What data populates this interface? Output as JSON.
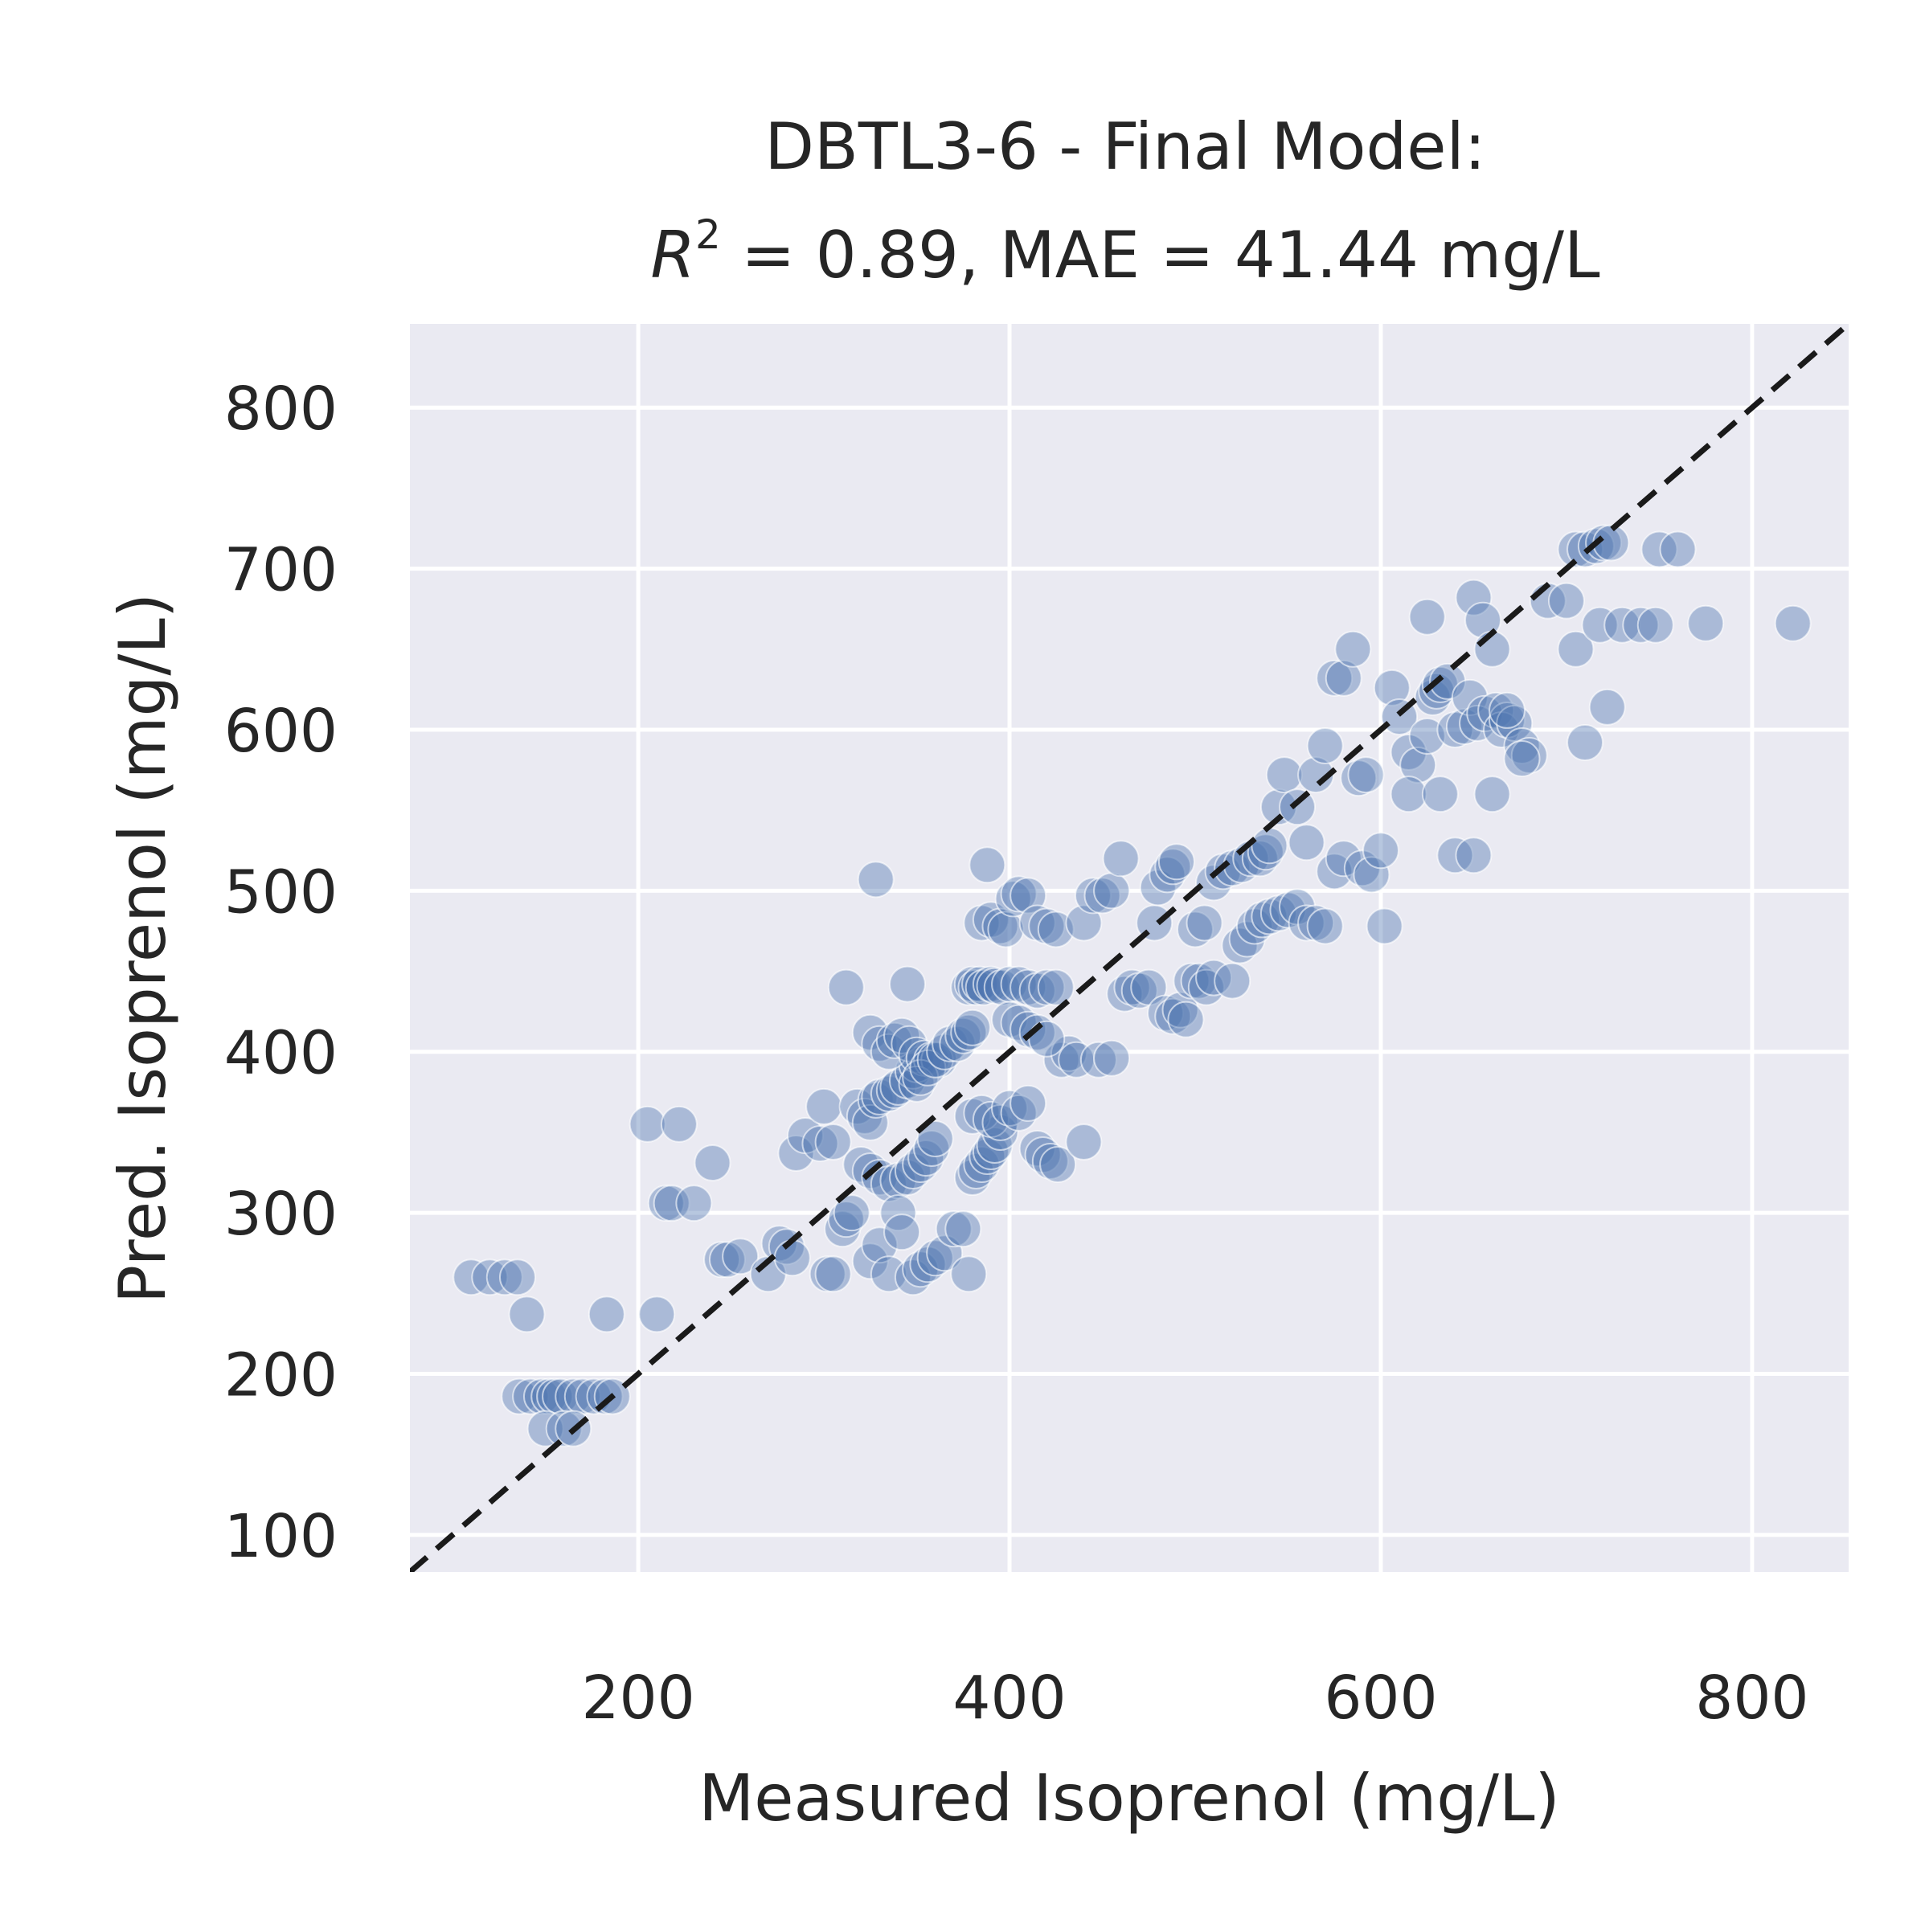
{
  "chart_data": {
    "type": "scatter",
    "title_line1": "DBTL3-6 - Final Model:",
    "title_line2_r2_symbol": "R",
    "title_line2_r2_exponent": "2",
    "title_line2_rest": " = 0.89, MAE = 41.44 mg/L",
    "xlabel": "Measured Isoprenol (mg/L)",
    "ylabel": "Pred. Isoprenol (mg/L)",
    "xlim": [
      77,
      852
    ],
    "ylim": [
      77,
      852
    ],
    "xticks": [
      200,
      400,
      600,
      800
    ],
    "yticks": [
      100,
      200,
      300,
      400,
      500,
      600,
      700,
      800
    ],
    "xtick_labels": [
      "200",
      "400",
      "600",
      "800"
    ],
    "ytick_labels": [
      "100",
      "200",
      "300",
      "400",
      "500",
      "600",
      "700",
      "800"
    ],
    "grid": true,
    "background_color": "#eaeaf2",
    "point_color": "#4c72b0",
    "point_alpha": 0.4,
    "identity_line": {
      "style": "dashed",
      "color": "#1a1a1a"
    },
    "points": [
      [
        110,
        260
      ],
      [
        120,
        260
      ],
      [
        128,
        260
      ],
      [
        135,
        260
      ],
      [
        140,
        237
      ],
      [
        136,
        186
      ],
      [
        142,
        186
      ],
      [
        148,
        186
      ],
      [
        152,
        186
      ],
      [
        155,
        186
      ],
      [
        158,
        186
      ],
      [
        165,
        186
      ],
      [
        170,
        186
      ],
      [
        176,
        186
      ],
      [
        182,
        186
      ],
      [
        186,
        186
      ],
      [
        150,
        166
      ],
      [
        160,
        166
      ],
      [
        165,
        166
      ],
      [
        183,
        237
      ],
      [
        210,
        237
      ],
      [
        205,
        355
      ],
      [
        222,
        355
      ],
      [
        215,
        306
      ],
      [
        218,
        306
      ],
      [
        230,
        306
      ],
      [
        240,
        331
      ],
      [
        245,
        271
      ],
      [
        248,
        271
      ],
      [
        255,
        273
      ],
      [
        270,
        262
      ],
      [
        276,
        281
      ],
      [
        280,
        279
      ],
      [
        283,
        272
      ],
      [
        285,
        337
      ],
      [
        290,
        348
      ],
      [
        298,
        343
      ],
      [
        300,
        366
      ],
      [
        302,
        262
      ],
      [
        305,
        262
      ],
      [
        310,
        290
      ],
      [
        312,
        296
      ],
      [
        315,
        300
      ],
      [
        305,
        344
      ],
      [
        318,
        366
      ],
      [
        322,
        360
      ],
      [
        325,
        356
      ],
      [
        328,
        370
      ],
      [
        330,
        372
      ],
      [
        335,
        374
      ],
      [
        338,
        376
      ],
      [
        340,
        378
      ],
      [
        345,
        382
      ],
      [
        348,
        388
      ],
      [
        350,
        392
      ],
      [
        320,
        330
      ],
      [
        325,
        326
      ],
      [
        330,
        322
      ],
      [
        335,
        318
      ],
      [
        340,
        320
      ],
      [
        345,
        322
      ],
      [
        348,
        326
      ],
      [
        352,
        330
      ],
      [
        355,
        334
      ],
      [
        358,
        340
      ],
      [
        360,
        346
      ],
      [
        312,
        440
      ],
      [
        325,
        412
      ],
      [
        330,
        405
      ],
      [
        335,
        400
      ],
      [
        338,
        407
      ],
      [
        342,
        410
      ],
      [
        346,
        405
      ],
      [
        350,
        398
      ],
      [
        354,
        396
      ],
      [
        358,
        395
      ],
      [
        362,
        395
      ],
      [
        328,
        507
      ],
      [
        345,
        442
      ],
      [
        350,
        380
      ],
      [
        352,
        384
      ],
      [
        356,
        390
      ],
      [
        360,
        395
      ],
      [
        365,
        400
      ],
      [
        368,
        405
      ],
      [
        372,
        405
      ],
      [
        375,
        410
      ],
      [
        378,
        412
      ],
      [
        380,
        415
      ],
      [
        325,
        270
      ],
      [
        330,
        280
      ],
      [
        335,
        262
      ],
      [
        340,
        300
      ],
      [
        342,
        288
      ],
      [
        348,
        260
      ],
      [
        352,
        265
      ],
      [
        356,
        268
      ],
      [
        360,
        272
      ],
      [
        365,
        275
      ],
      [
        370,
        290
      ],
      [
        375,
        290
      ],
      [
        378,
        262
      ],
      [
        380,
        322
      ],
      [
        382,
        326
      ],
      [
        385,
        330
      ],
      [
        388,
        335
      ],
      [
        390,
        338
      ],
      [
        392,
        342
      ],
      [
        395,
        350
      ],
      [
        378,
        440
      ],
      [
        380,
        442
      ],
      [
        382,
        440
      ],
      [
        384,
        442
      ],
      [
        386,
        440
      ],
      [
        390,
        442
      ],
      [
        392,
        441
      ],
      [
        396,
        440
      ],
      [
        400,
        442
      ],
      [
        405,
        442
      ],
      [
        410,
        440
      ],
      [
        415,
        438
      ],
      [
        420,
        440
      ],
      [
        425,
        440
      ],
      [
        385,
        480
      ],
      [
        390,
        482
      ],
      [
        395,
        478
      ],
      [
        398,
        476
      ],
      [
        402,
        495
      ],
      [
        405,
        498
      ],
      [
        410,
        497
      ],
      [
        415,
        480
      ],
      [
        420,
        478
      ],
      [
        425,
        476
      ],
      [
        428,
        395
      ],
      [
        432,
        399
      ],
      [
        436,
        395
      ],
      [
        388,
        516
      ],
      [
        400,
        420
      ],
      [
        405,
        418
      ],
      [
        410,
        414
      ],
      [
        415,
        412
      ],
      [
        420,
        408
      ],
      [
        380,
        360
      ],
      [
        385,
        362
      ],
      [
        390,
        358
      ],
      [
        395,
        356
      ],
      [
        400,
        365
      ],
      [
        405,
        362
      ],
      [
        410,
        368
      ],
      [
        415,
        340
      ],
      [
        418,
        336
      ],
      [
        422,
        332
      ],
      [
        426,
        330
      ],
      [
        440,
        344
      ],
      [
        448,
        395
      ],
      [
        455,
        396
      ],
      [
        440,
        480
      ],
      [
        445,
        497
      ],
      [
        450,
        497
      ],
      [
        455,
        500
      ],
      [
        460,
        520
      ],
      [
        462,
        436
      ],
      [
        466,
        440
      ],
      [
        470,
        438
      ],
      [
        475,
        440
      ],
      [
        478,
        480
      ],
      [
        480,
        502
      ],
      [
        485,
        510
      ],
      [
        488,
        515
      ],
      [
        490,
        518
      ],
      [
        484,
        424
      ],
      [
        488,
        422
      ],
      [
        492,
        426
      ],
      [
        495,
        420
      ],
      [
        498,
        444
      ],
      [
        502,
        444
      ],
      [
        506,
        440
      ],
      [
        510,
        446
      ],
      [
        500,
        476
      ],
      [
        505,
        480
      ],
      [
        510,
        505
      ],
      [
        515,
        512
      ],
      [
        520,
        514
      ],
      [
        525,
        516
      ],
      [
        530,
        520
      ],
      [
        535,
        520
      ],
      [
        538,
        524
      ],
      [
        540,
        528
      ],
      [
        545,
        552
      ],
      [
        520,
        444
      ],
      [
        524,
        466
      ],
      [
        528,
        470
      ],
      [
        532,
        478
      ],
      [
        536,
        482
      ],
      [
        540,
        484
      ],
      [
        545,
        486
      ],
      [
        550,
        488
      ],
      [
        555,
        490
      ],
      [
        560,
        480
      ],
      [
        565,
        480
      ],
      [
        570,
        478
      ],
      [
        548,
        572
      ],
      [
        555,
        552
      ],
      [
        560,
        530
      ],
      [
        565,
        572
      ],
      [
        570,
        590
      ],
      [
        575,
        632
      ],
      [
        580,
        632
      ],
      [
        585,
        650
      ],
      [
        588,
        570
      ],
      [
        592,
        572
      ],
      [
        575,
        512
      ],
      [
        580,
        520
      ],
      [
        590,
        514
      ],
      [
        595,
        510
      ],
      [
        600,
        525
      ],
      [
        602,
        478
      ],
      [
        606,
        626
      ],
      [
        610,
        608
      ],
      [
        615,
        586
      ],
      [
        620,
        578
      ],
      [
        615,
        560
      ],
      [
        625,
        596
      ],
      [
        628,
        620
      ],
      [
        630,
        624
      ],
      [
        632,
        628
      ],
      [
        636,
        630
      ],
      [
        640,
        600
      ],
      [
        645,
        602
      ],
      [
        648,
        620
      ],
      [
        652,
        604
      ],
      [
        656,
        610
      ],
      [
        625,
        670
      ],
      [
        650,
        682
      ],
      [
        655,
        668
      ],
      [
        660,
        650
      ],
      [
        662,
        612
      ],
      [
        665,
        600
      ],
      [
        668,
        606
      ],
      [
        672,
        604
      ],
      [
        676,
        590
      ],
      [
        680,
        584
      ],
      [
        632,
        560
      ],
      [
        640,
        522
      ],
      [
        650,
        522
      ],
      [
        660,
        560
      ],
      [
        668,
        612
      ],
      [
        676,
        582
      ],
      [
        690,
        680
      ],
      [
        700,
        680
      ],
      [
        705,
        650
      ],
      [
        710,
        592
      ],
      [
        705,
        712
      ],
      [
        710,
        712
      ],
      [
        716,
        714
      ],
      [
        720,
        716
      ],
      [
        724,
        716
      ],
      [
        718,
        665
      ],
      [
        722,
        614
      ],
      [
        730,
        665
      ],
      [
        740,
        665
      ],
      [
        748,
        665
      ],
      [
        750,
        712
      ],
      [
        760,
        712
      ],
      [
        775,
        666
      ],
      [
        822,
        666
      ]
    ]
  }
}
